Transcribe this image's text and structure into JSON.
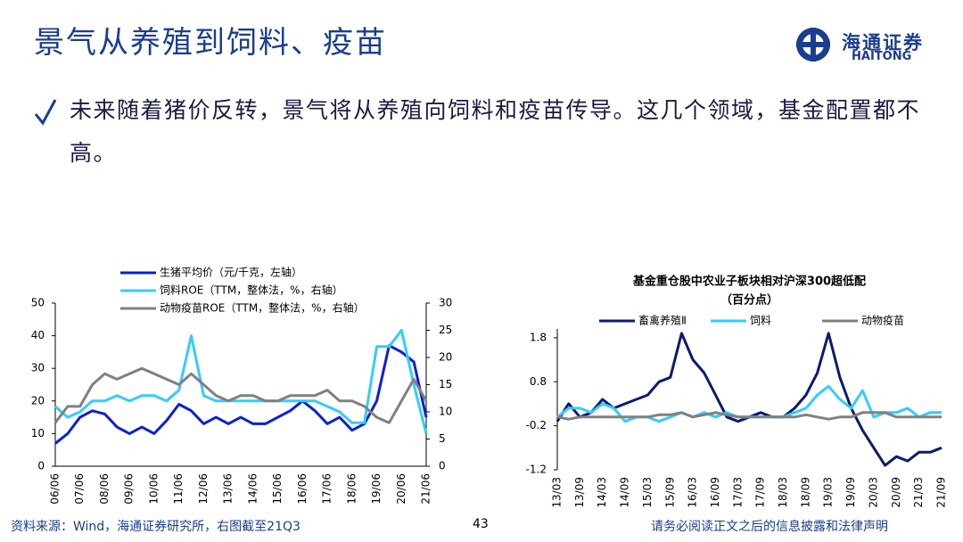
{
  "header": {
    "title": "景气从养殖到饲料、疫苗"
  },
  "logo": {
    "name": "海通证券",
    "name_en": "HAITONG"
  },
  "bullet": "未来随着猪价反转，景气将从养殖向饲料和疫苗传导。这几个领域，基金配置都不高。",
  "footer": {
    "source": "资料来源：Wind，海通证券研究所，右图截至21Q3",
    "page": 43,
    "disclaimer": "请务必阅读正文之后的信息披露和法律声明"
  },
  "chart_data": [
    {
      "type": "line",
      "legend": "top-left",
      "categories": [
        "06/06",
        null,
        "07/06",
        null,
        "08/06",
        null,
        "09/06",
        null,
        "10/06",
        null,
        "11/06",
        null,
        "12/06",
        null,
        "13/06",
        null,
        "14/06",
        null,
        "15/06",
        null,
        "16/06",
        null,
        "17/06",
        null,
        "18/06",
        null,
        "19/06",
        null,
        "20/06",
        null,
        "21/06"
      ],
      "ylim": [
        0,
        50
      ],
      "yticks": [
        0,
        10,
        20,
        30,
        40,
        50
      ],
      "y2lim": [
        0,
        30
      ],
      "y2ticks": [
        0,
        5,
        10,
        15,
        20,
        25,
        30
      ],
      "series": [
        {
          "name": "生猪平均价（元/千克，左轴）",
          "color": "#0a1fd6",
          "values": [
            7,
            10,
            15,
            17,
            16,
            12,
            10,
            12,
            10,
            14,
            19,
            17,
            13,
            15,
            13,
            15,
            13,
            13,
            15,
            17,
            20,
            17,
            13,
            15,
            11,
            13,
            20,
            37,
            35,
            32,
            15
          ]
        },
        {
          "name": "饲料ROE（TTM，整体法，%，右轴）",
          "color": "#33ccff",
          "axis": "y2",
          "values": [
            11,
            9,
            10,
            12,
            12,
            13,
            12,
            13,
            13,
            12,
            14,
            24,
            13,
            12,
            12,
            12,
            12,
            12,
            12,
            12,
            12,
            12,
            11,
            10,
            8,
            8,
            22,
            22,
            25,
            15,
            6
          ]
        },
        {
          "name": "动物疫苗ROE（TTM，整体法，%，右轴）",
          "color": "#808080",
          "axis": "y2",
          "values": [
            8,
            11,
            11,
            15,
            17,
            16,
            17,
            18,
            17,
            16,
            15,
            17,
            15,
            13,
            12,
            13,
            13,
            12,
            12,
            13,
            13,
            13,
            14,
            12,
            12,
            11,
            9,
            8,
            12,
            16,
            12
          ]
        }
      ]
    },
    {
      "type": "line",
      "legend": "top",
      "title": "基金重仓股中农业子板块相对沪深300超低配",
      "subtitle": "（百分点）",
      "categories": [
        "13/03",
        null,
        "13/09",
        null,
        "14/03",
        null,
        "14/09",
        null,
        "15/03",
        null,
        "15/09",
        null,
        "16/03",
        null,
        "16/09",
        null,
        "17/03",
        null,
        "17/09",
        null,
        "18/03",
        null,
        "18/09",
        null,
        "19/03",
        null,
        "19/09",
        null,
        "20/03",
        null,
        "20/09",
        null,
        "21/03",
        null,
        "21/09"
      ],
      "ylim": [
        -1.2,
        2.0
      ],
      "yticks": [
        -1.2,
        -0.2,
        0.8,
        1.8
      ],
      "series": [
        {
          "name": "畜禽养殖Ⅱ",
          "color": "#0d1a6e",
          "values": [
            -0.1,
            0.3,
            0.0,
            0.1,
            0.4,
            0.2,
            0.3,
            0.4,
            0.5,
            0.8,
            0.9,
            1.9,
            1.3,
            1.0,
            0.5,
            0.0,
            -0.1,
            0.0,
            0.1,
            0.0,
            0.0,
            0.2,
            0.5,
            1.0,
            1.9,
            0.9,
            0.2,
            -0.3,
            -0.7,
            -1.1,
            -0.9,
            -1.0,
            -0.8,
            -0.8,
            -0.7
          ]
        },
        {
          "name": "饲料",
          "color": "#33ccff",
          "values": [
            0.0,
            0.2,
            0.2,
            0.1,
            0.3,
            0.2,
            -0.1,
            0.0,
            0.0,
            -0.1,
            0.0,
            0.1,
            0.0,
            0.1,
            0.0,
            0.1,
            0.0,
            0.0,
            0.0,
            0.0,
            0.0,
            0.1,
            0.2,
            0.5,
            0.7,
            0.4,
            0.2,
            0.6,
            0.0,
            0.1,
            0.1,
            0.2,
            0.0,
            0.1,
            0.1
          ]
        },
        {
          "name": "动物疫苗",
          "color": "#808080",
          "values": [
            0.0,
            -0.05,
            0.0,
            0.0,
            0.0,
            0.0,
            0.0,
            0.0,
            0.0,
            0.05,
            0.05,
            0.1,
            0.0,
            0.05,
            0.1,
            0.05,
            0.0,
            0.0,
            0.0,
            0.0,
            0.0,
            0.0,
            0.05,
            0.0,
            -0.05,
            0.0,
            0.0,
            0.1,
            0.1,
            0.1,
            0.0,
            0.0,
            0.0,
            0.0,
            0.0
          ]
        }
      ]
    }
  ]
}
